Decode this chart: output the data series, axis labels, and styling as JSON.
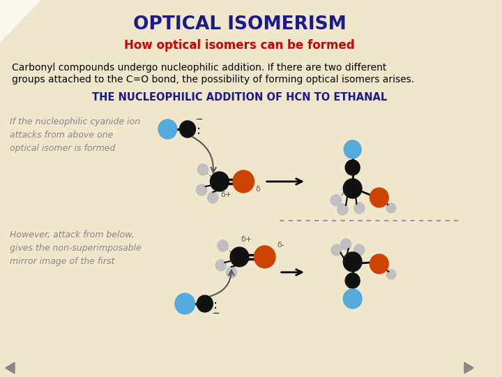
{
  "bg_color": "#f0e6cc",
  "title": "OPTICAL ISOMERISM",
  "title_color": "#1a1a8c",
  "subtitle": "How optical isomers can be formed",
  "subtitle_color": "#cc0000",
  "body_text1": "Carbonyl compounds undergo nucleophilic addition. If there are two different",
  "body_text2": "groups attached to the C=O bond, the possibility of forming optical isomers arises.",
  "body_color": "#000000",
  "nucleophilic_title": "THE NUCLEOPHILIC ADDITION OF HCN TO ETHANAL",
  "nucleophilic_color": "#1a1a8c",
  "left_text_top": "If the nucleophilic cyanide ion\nattacks from above one\noptical isomer is formed",
  "left_text_bottom": "However, attack from below,\ngives the non-superimposable\nmirror image of the first",
  "left_text_color": "#888888",
  "nav_color": "#888888",
  "atom_black": "#111111",
  "atom_orange": "#cc4400",
  "atom_blue": "#55aadd",
  "atom_gray": "#c0c0c0"
}
